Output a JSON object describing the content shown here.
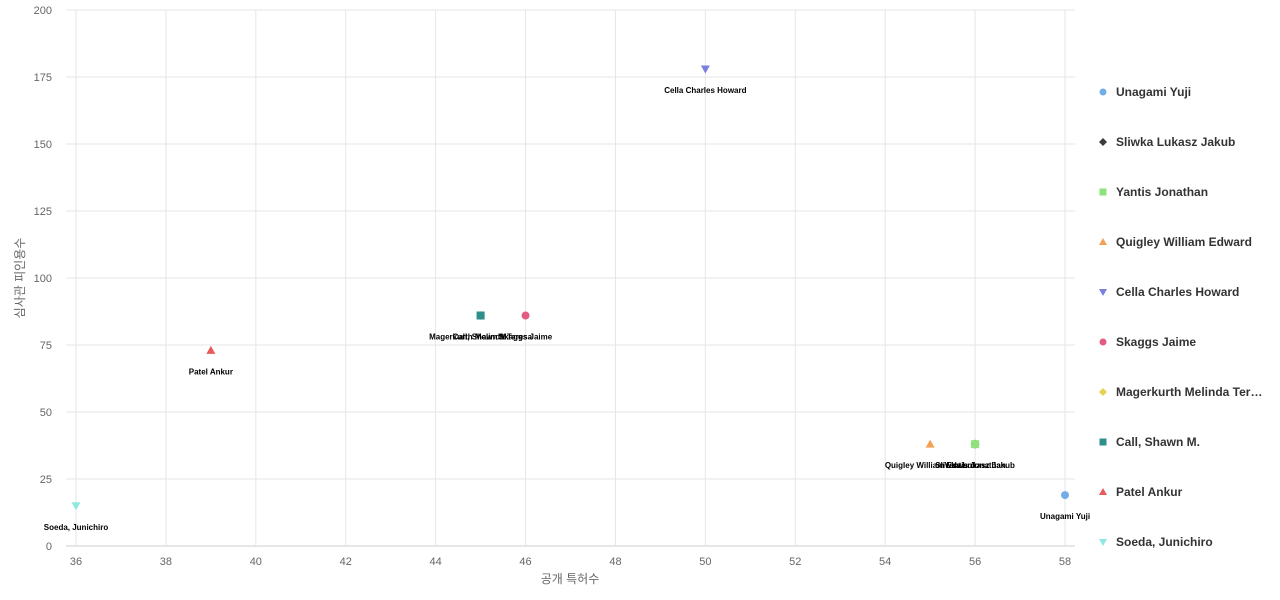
{
  "chart_data": {
    "type": "scatter",
    "xlabel": "공개 특허수",
    "ylabel": "심사관 피인용수",
    "xlim": [
      36,
      58
    ],
    "ylim": [
      0,
      200
    ],
    "x_ticks": [
      36,
      38,
      40,
      42,
      44,
      46,
      48,
      50,
      52,
      54,
      56,
      58
    ],
    "y_ticks": [
      0,
      25,
      50,
      75,
      100,
      125,
      150,
      175,
      200
    ],
    "grid": true,
    "legend_position": "right",
    "series": [
      {
        "name": "Unagami Yuji",
        "legend_label": "Unagami Yuji",
        "color": "#73ade8",
        "marker": "circle",
        "x": 58,
        "y": 19
      },
      {
        "name": "Sliwka Lukasz Jakub",
        "legend_label": "Sliwka Lukasz Jakub",
        "color": "#3c3c3c",
        "marker": "diamond",
        "x": 56,
        "y": 38
      },
      {
        "name": "Yantis Jonathan",
        "legend_label": "Yantis Jonathan",
        "color": "#8de27b",
        "marker": "square",
        "x": 56,
        "y": 38
      },
      {
        "name": "Quigley William Edward",
        "legend_label": "Quigley William Edward",
        "color": "#f3a154",
        "marker": "triangle-up",
        "x": 55,
        "y": 38
      },
      {
        "name": "Cella Charles Howard",
        "legend_label": "Cella Charles Howard",
        "color": "#7a80e0",
        "marker": "triangle-down",
        "x": 50,
        "y": 178
      },
      {
        "name": "Skaggs Jaime",
        "legend_label": "Skaggs Jaime",
        "color": "#e45a80",
        "marker": "circle",
        "x": 46,
        "y": 86
      },
      {
        "name": "Magerkurth Melinda Teresa",
        "legend_label": "Magerkurth Melinda Ter…",
        "color": "#e4d052",
        "marker": "diamond",
        "x": 45,
        "y": 86
      },
      {
        "name": "Call, Shawn M.",
        "legend_label": "Call, Shawn M.",
        "color": "#2f8f8a",
        "marker": "square",
        "x": 45,
        "y": 86
      },
      {
        "name": "Patel Ankur",
        "legend_label": "Patel Ankur",
        "color": "#e85a5a",
        "marker": "triangle-up",
        "x": 39,
        "y": 73
      },
      {
        "name": "Soeda, Junichiro",
        "legend_label": "Soeda, Junichiro",
        "color": "#8ee8e0",
        "marker": "triangle-down",
        "x": 36,
        "y": 15
      }
    ]
  }
}
